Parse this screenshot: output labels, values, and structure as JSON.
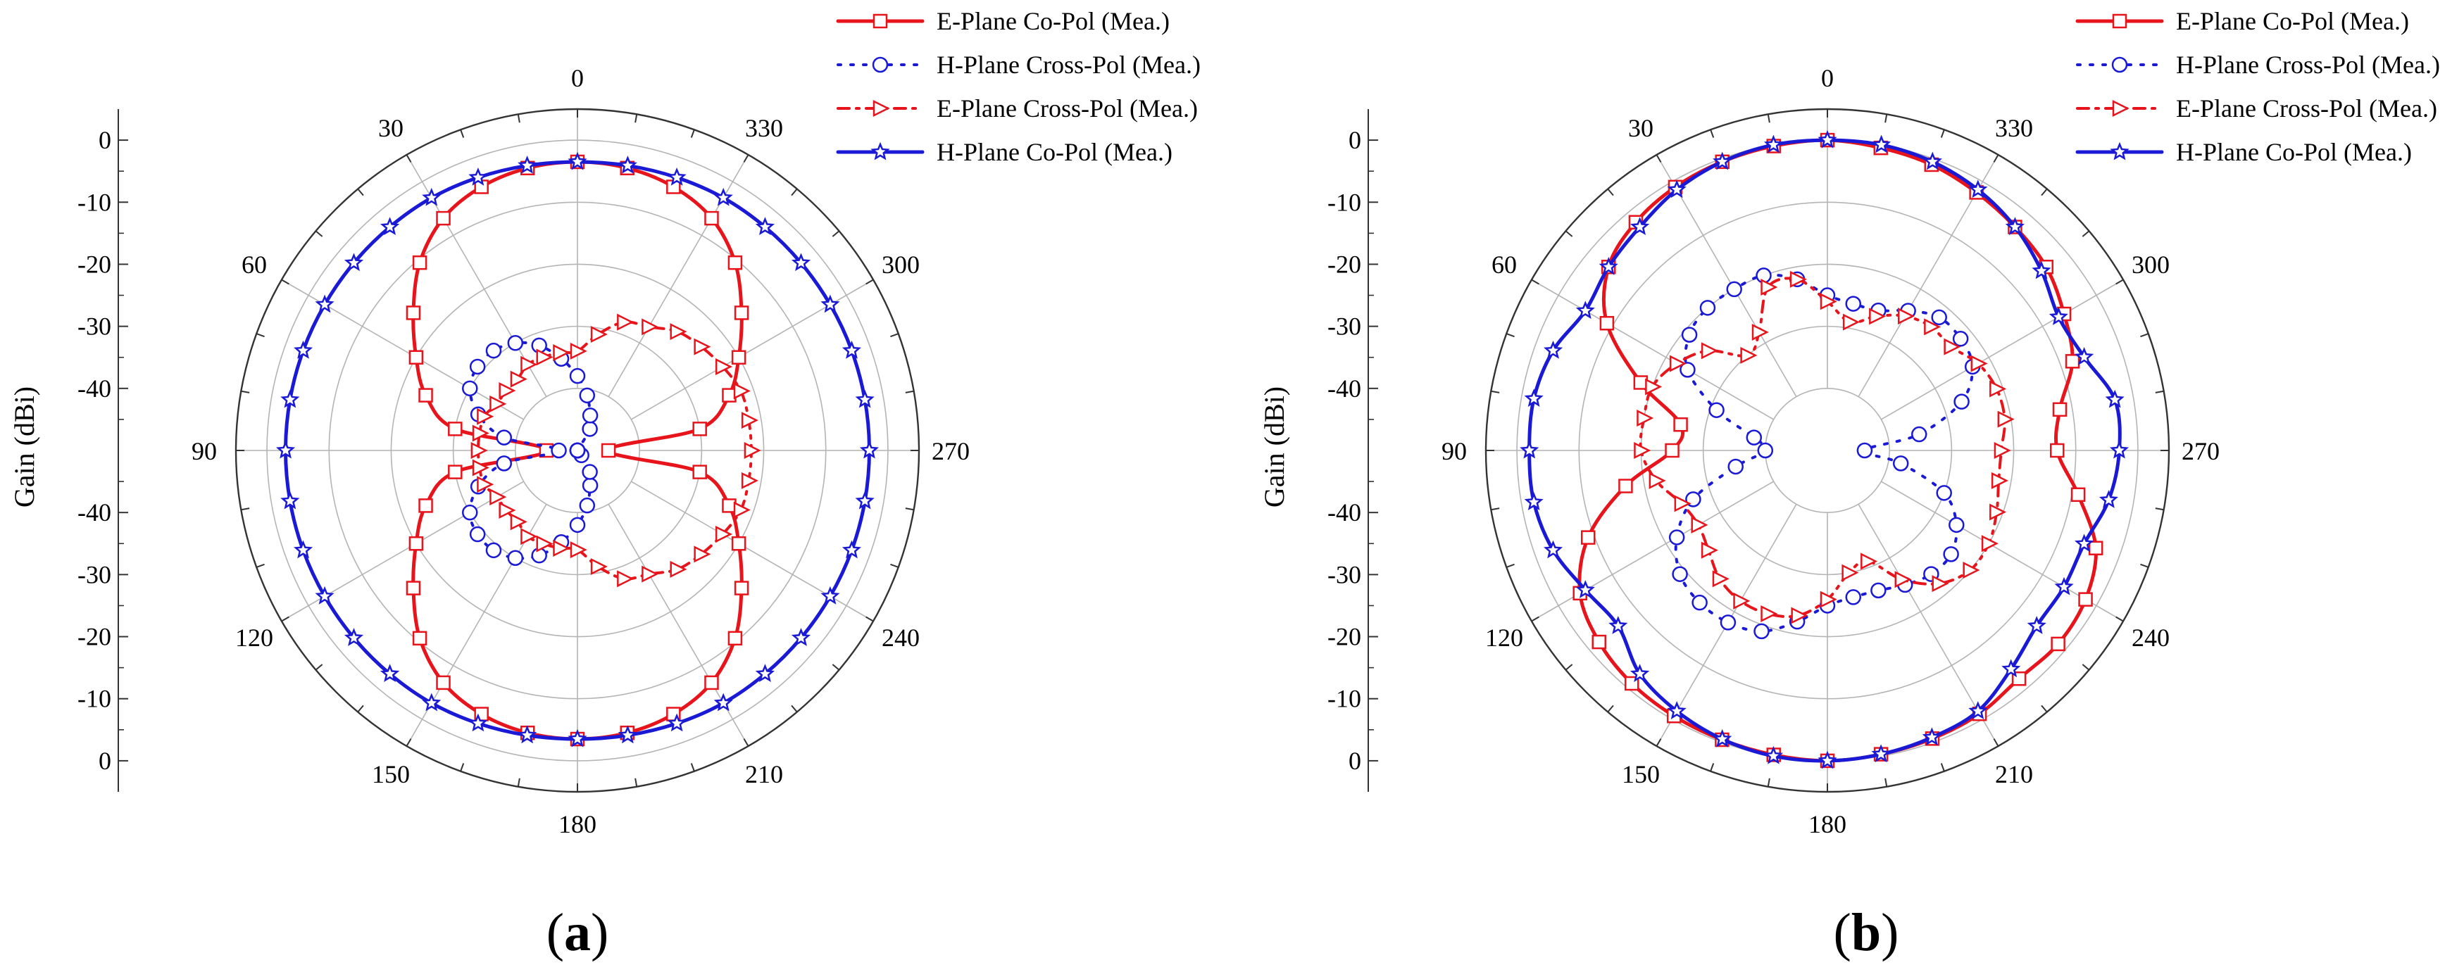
{
  "figure": {
    "panels": [
      {
        "id": "a",
        "label_open": "(",
        "label_letter": "a",
        "label_close": ")",
        "ylabel": "Gain (dBi)",
        "radial_ticks_top": [
          "0",
          "-10",
          "-20",
          "-30",
          "-40"
        ],
        "radial_ticks_bottom": [
          "-40",
          "-30",
          "-20",
          "-10",
          "0"
        ],
        "angle_labels": [
          "0",
          "30",
          "60",
          "90",
          "120",
          "150",
          "180",
          "210",
          "240",
          "270",
          "300",
          "330"
        ],
        "legend": [
          "E-Plane Co-Pol (Mea.)",
          "H-Plane Cross-Pol (Mea.)",
          "E-Plane Cross-Pol (Mea.)",
          "H-Plane Co-Pol (Mea.)"
        ]
      },
      {
        "id": "b",
        "label_open": "(",
        "label_letter": "b",
        "label_close": ")",
        "ylabel": "Gain (dBi)",
        "radial_ticks_top": [
          "0",
          "-10",
          "-20",
          "-30",
          "-40"
        ],
        "radial_ticks_bottom": [
          "-40",
          "-30",
          "-20",
          "-10",
          "0"
        ],
        "angle_labels": [
          "0",
          "30",
          "60",
          "90",
          "120",
          "150",
          "180",
          "210",
          "240",
          "270",
          "300",
          "330"
        ],
        "legend": [
          "E-Plane Co-Pol (Mea.)",
          "H-Plane Cross-Pol (Mea.)",
          "E-Plane Cross-Pol (Mea.)",
          "H-Plane Co-Pol (Mea.)"
        ]
      }
    ]
  },
  "colors": {
    "e_plane": "#e8141c",
    "h_plane": "#1a1ad6",
    "grid": "#b4b4b4",
    "frame": "#333333"
  },
  "chart_data": [
    {
      "type": "polar",
      "title": "",
      "panel": "a",
      "ylabel": "Gain (dBi)",
      "rlim": [
        -50,
        5
      ],
      "angle_direction": "counterclockwise",
      "zero_location": "top",
      "angles_deg": [
        0,
        10,
        20,
        30,
        40,
        50,
        60,
        70,
        80,
        90,
        100,
        110,
        120,
        130,
        140,
        150,
        160,
        170,
        180,
        190,
        200,
        210,
        220,
        230,
        240,
        250,
        260,
        270,
        280,
        290,
        300,
        310,
        320,
        330,
        340,
        350
      ],
      "series": [
        {
          "name": "E-Plane Co-Pol (Mea.)",
          "style": "solid",
          "marker": "square",
          "color": "#e8141c",
          "values": [
            -3.5,
            -3.8,
            -4.8,
            -6.8,
            -10.5,
            -15.5,
            -20,
            -24,
            -30,
            -45,
            -30,
            -24,
            -20,
            -15.5,
            -10.5,
            -6.8,
            -4.8,
            -3.8,
            -3.5,
            -3.8,
            -4.8,
            -6.8,
            -10.5,
            -15.5,
            -20,
            -24,
            -30,
            -45,
            -30,
            -24,
            -20,
            -15.5,
            -10.5,
            -6.8,
            -4.8,
            -3.8
          ]
        },
        {
          "name": "H-Plane Cross-Pol (Mea.)",
          "style": "dotted",
          "marker": "circle",
          "color": "#1a1ad6",
          "values": [
            -38,
            -35,
            -32,
            -30,
            -29,
            -29,
            -30,
            -33,
            -38,
            -47,
            -38,
            -33,
            -30,
            -29,
            -29,
            -30,
            -32,
            -35,
            -38,
            -41,
            -44,
            -46,
            -49,
            -50,
            -50,
            -50,
            -50,
            -50,
            -50,
            -50,
            -50,
            -50,
            -50,
            -46,
            -44,
            -41
          ]
        },
        {
          "name": "E-Plane Cross-Pol (Mea.)",
          "style": "dashdot",
          "marker": "triangle",
          "color": "#e8141c",
          "values": [
            -34,
            -34,
            -34,
            -34,
            -35,
            -35,
            -35,
            -34,
            -34,
            -34,
            -34,
            -34,
            -35,
            -35,
            -35,
            -34,
            -34,
            -34,
            -34,
            -31,
            -28,
            -27,
            -25,
            -24,
            -23,
            -22,
            -22,
            -22,
            -22,
            -22,
            -23,
            -24,
            -25,
            -27,
            -28,
            -31
          ]
        },
        {
          "name": "H-Plane Co-Pol (Mea.)",
          "style": "solid",
          "marker": "star",
          "color": "#1a1ad6",
          "values": [
            -3.5,
            -3.4,
            -3.2,
            -3,
            -3,
            -3,
            -3,
            -3,
            -3,
            -3,
            -3,
            -3,
            -3,
            -3,
            -3,
            -3,
            -3.2,
            -3.4,
            -3.5,
            -3.4,
            -3.2,
            -3,
            -3,
            -3,
            -3,
            -3,
            -3,
            -3,
            -3,
            -3,
            -3,
            -3,
            -3,
            -3,
            -3.2,
            -3.4
          ]
        }
      ]
    },
    {
      "type": "polar",
      "title": "",
      "panel": "b",
      "ylabel": "Gain (dBi)",
      "rlim": [
        -50,
        5
      ],
      "angle_direction": "counterclockwise",
      "zero_location": "top",
      "angles_deg": [
        0,
        10,
        20,
        30,
        40,
        50,
        60,
        70,
        80,
        90,
        100,
        110,
        120,
        130,
        140,
        150,
        160,
        170,
        180,
        190,
        200,
        210,
        220,
        230,
        240,
        250,
        260,
        270,
        280,
        290,
        300,
        310,
        320,
        330,
        340,
        350
      ],
      "series": [
        {
          "name": "E-Plane Co-Pol (Mea.)",
          "style": "solid",
          "marker": "square",
          "color": "#e8141c",
          "values": [
            0,
            -0.2,
            -0.5,
            -1,
            -2,
            -4,
            -9,
            -18,
            -26,
            -25,
            -17,
            -9,
            -4,
            -2,
            -1,
            -0.6,
            -0.4,
            -0.2,
            0,
            -0.3,
            -0.6,
            -1,
            -2,
            -1.5,
            -2,
            -4,
            -9,
            -13,
            -12,
            -8,
            -6,
            -4,
            -3,
            -2,
            -1,
            -0.5
          ]
        },
        {
          "name": "H-Plane Cross-Pol (Mea.)",
          "style": "dotted",
          "marker": "circle",
          "color": "#1a1ad6",
          "values": [
            -25,
            -22,
            -20,
            -20,
            -20,
            -21,
            -24,
            -31,
            -38,
            -40,
            -35,
            -27,
            -22,
            -19,
            -18,
            -18,
            -19,
            -22,
            -25,
            -26,
            -26,
            -25,
            -24,
            -24,
            -26,
            -30,
            -38,
            -44,
            -35,
            -27,
            -23,
            -22,
            -22,
            -24,
            -26,
            -26
          ]
        },
        {
          "name": "E-Plane Cross-Pol (Mea.)",
          "style": "dashdot",
          "marker": "triangle",
          "color": "#e8141c",
          "values": [
            -26,
            -22,
            -22,
            -28,
            -30,
            -25,
            -22,
            -20,
            -20,
            -20,
            -22,
            -25,
            -26,
            -25,
            -23,
            -22,
            -22,
            -23,
            -26,
            -30,
            -31,
            -26,
            -22,
            -20,
            -20,
            -21,
            -22,
            -22,
            -21,
            -21,
            -22,
            -24,
            -24,
            -25,
            -27,
            -29
          ]
        },
        {
          "name": "H-Plane Co-Pol (Mea.)",
          "style": "solid",
          "marker": "star",
          "color": "#1a1ad6",
          "values": [
            0,
            0,
            -0.5,
            -1.5,
            -3,
            -4,
            -5,
            -3,
            -2,
            -2,
            -2,
            -3,
            -5,
            -6,
            -3,
            -1.5,
            -0.5,
            0,
            0,
            -0.3,
            -0.8,
            -1.5,
            -4,
            -6,
            -6,
            -6,
            -4,
            -3,
            -3,
            -6,
            -7,
            -5,
            -3,
            -1.5,
            -0.5,
            0
          ]
        }
      ]
    }
  ]
}
